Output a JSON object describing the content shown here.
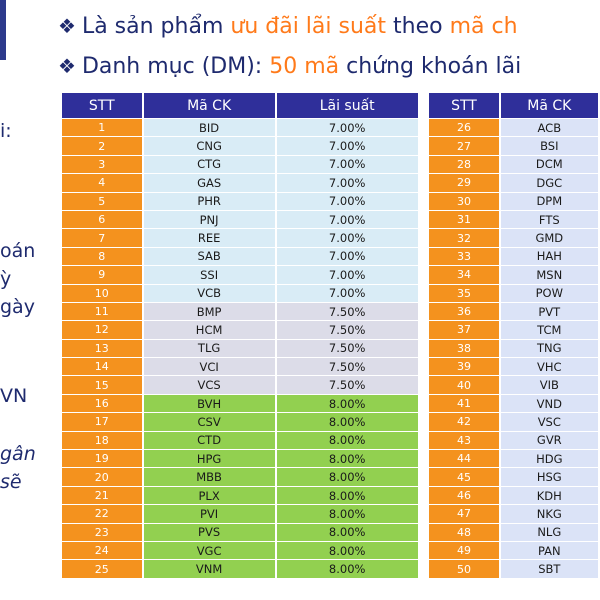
{
  "headline1": {
    "prefix": "Là sản phẩm ",
    "orange": "ưu đãi lãi suất",
    "middle": " theo ",
    "orange2": "mã ch"
  },
  "headline2": {
    "prefix": "Danh mục (DM): ",
    "orange": "50 mã",
    "suffix": " chứng khoán lãi"
  },
  "left_fragments": [
    "i:",
    "oán",
    "ỳ",
    "gày",
    "VN",
    "gân",
    "sẽ"
  ],
  "table": {
    "headers": [
      "STT",
      "Mã CK",
      "Lãi suất",
      "STT",
      "Mã CK"
    ],
    "rows": [
      {
        "stt": "1",
        "code": "BID",
        "rate": "7.00%",
        "stt2": "26",
        "code2": "ACB",
        "color": "blue"
      },
      {
        "stt": "2",
        "code": "CNG",
        "rate": "7.00%",
        "stt2": "27",
        "code2": "BSI",
        "color": "blue"
      },
      {
        "stt": "3",
        "code": "CTG",
        "rate": "7.00%",
        "stt2": "28",
        "code2": "DCM",
        "color": "blue"
      },
      {
        "stt": "4",
        "code": "GAS",
        "rate": "7.00%",
        "stt2": "29",
        "code2": "DGC",
        "color": "blue"
      },
      {
        "stt": "5",
        "code": "PHR",
        "rate": "7.00%",
        "stt2": "30",
        "code2": "DPM",
        "color": "blue"
      },
      {
        "stt": "6",
        "code": "PNJ",
        "rate": "7.00%",
        "stt2": "31",
        "code2": "FTS",
        "color": "blue"
      },
      {
        "stt": "7",
        "code": "REE",
        "rate": "7.00%",
        "stt2": "32",
        "code2": "GMD",
        "color": "blue"
      },
      {
        "stt": "8",
        "code": "SAB",
        "rate": "7.00%",
        "stt2": "33",
        "code2": "HAH",
        "color": "blue"
      },
      {
        "stt": "9",
        "code": "SSI",
        "rate": "7.00%",
        "stt2": "34",
        "code2": "MSN",
        "color": "blue"
      },
      {
        "stt": "10",
        "code": "VCB",
        "rate": "7.00%",
        "stt2": "35",
        "code2": "POW",
        "color": "blue"
      },
      {
        "stt": "11",
        "code": "BMP",
        "rate": "7.50%",
        "stt2": "36",
        "code2": "PVT",
        "color": "grey"
      },
      {
        "stt": "12",
        "code": "HCM",
        "rate": "7.50%",
        "stt2": "37",
        "code2": "TCM",
        "color": "grey"
      },
      {
        "stt": "13",
        "code": "TLG",
        "rate": "7.50%",
        "stt2": "38",
        "code2": "TNG",
        "color": "grey"
      },
      {
        "stt": "14",
        "code": "VCI",
        "rate": "7.50%",
        "stt2": "39",
        "code2": "VHC",
        "color": "grey"
      },
      {
        "stt": "15",
        "code": "VCS",
        "rate": "7.50%",
        "stt2": "40",
        "code2": "VIB",
        "color": "grey"
      },
      {
        "stt": "16",
        "code": "BVH",
        "rate": "8.00%",
        "stt2": "41",
        "code2": "VND",
        "color": "green"
      },
      {
        "stt": "17",
        "code": "CSV",
        "rate": "8.00%",
        "stt2": "42",
        "code2": "VSC",
        "color": "green"
      },
      {
        "stt": "18",
        "code": "CTD",
        "rate": "8.00%",
        "stt2": "43",
        "code2": "GVR",
        "color": "green"
      },
      {
        "stt": "19",
        "code": "HPG",
        "rate": "8.00%",
        "stt2": "44",
        "code2": "HDG",
        "color": "green"
      },
      {
        "stt": "20",
        "code": "MBB",
        "rate": "8.00%",
        "stt2": "45",
        "code2": "HSG",
        "color": "green"
      },
      {
        "stt": "21",
        "code": "PLX",
        "rate": "8.00%",
        "stt2": "46",
        "code2": "KDH",
        "color": "green"
      },
      {
        "stt": "22",
        "code": "PVI",
        "rate": "8.00%",
        "stt2": "47",
        "code2": "NKG",
        "color": "green"
      },
      {
        "stt": "23",
        "code": "PVS",
        "rate": "8.00%",
        "stt2": "48",
        "code2": "NLG",
        "color": "green"
      },
      {
        "stt": "24",
        "code": "VGC",
        "rate": "8.00%",
        "stt2": "49",
        "code2": "PAN",
        "color": "green"
      },
      {
        "stt": "25",
        "code": "VNM",
        "rate": "8.00%",
        "stt2": "50",
        "code2": "SBT",
        "color": "green"
      }
    ]
  },
  "colors": {
    "header": "#2f2f9a",
    "stt": "#f4921e",
    "blue_row": "#d9ecf6",
    "grey_row": "#dcdce8",
    "green_row": "#92d050",
    "accent_text": "#ff7a1a",
    "title_text": "#1e2a6e"
  }
}
